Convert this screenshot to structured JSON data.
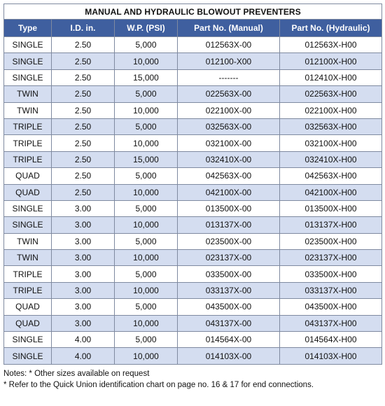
{
  "title": "MANUAL AND HYDRAULIC BLOWOUT PREVENTERS",
  "columns": [
    "Type",
    "I.D. in.",
    "W.P. (PSI)",
    "Part No. (Manual)",
    "Part No. (Hydraulic)"
  ],
  "rows": [
    [
      "SINGLE",
      "2.50",
      "5,000",
      "012563X-00",
      "012563X-H00"
    ],
    [
      "SINGLE",
      "2.50",
      "10,000",
      "012100-X00",
      "012100X-H00"
    ],
    [
      "SINGLE",
      "2.50",
      "15,000",
      "-------",
      "012410X-H00"
    ],
    [
      "TWIN",
      "2.50",
      "5,000",
      "022563X-00",
      "022563X-H00"
    ],
    [
      "TWIN",
      "2.50",
      "10,000",
      "022100X-00",
      "022100X-H00"
    ],
    [
      "TRIPLE",
      "2.50",
      "5,000",
      "032563X-00",
      "032563X-H00"
    ],
    [
      "TRIPLE",
      "2.50",
      "10,000",
      "032100X-00",
      "032100X-H00"
    ],
    [
      "TRIPLE",
      "2.50",
      "15,000",
      "032410X-00",
      "032410X-H00"
    ],
    [
      "QUAD",
      "2.50",
      "5,000",
      "042563X-00",
      "042563X-H00"
    ],
    [
      "QUAD",
      "2.50",
      "10,000",
      "042100X-00",
      "042100X-H00"
    ],
    [
      "SINGLE",
      "3.00",
      "5,000",
      "013500X-00",
      "013500X-H00"
    ],
    [
      "SINGLE",
      "3.00",
      "10,000",
      "013137X-00",
      "013137X-H00"
    ],
    [
      "TWIN",
      "3.00",
      "5,000",
      "023500X-00",
      "023500X-H00"
    ],
    [
      "TWIN",
      "3.00",
      "10,000",
      "023137X-00",
      "023137X-H00"
    ],
    [
      "TRIPLE",
      "3.00",
      "5,000",
      "033500X-00",
      "033500X-H00"
    ],
    [
      "TRIPLE",
      "3.00",
      "10,000",
      "033137X-00",
      "033137X-H00"
    ],
    [
      "QUAD",
      "3.00",
      "5,000",
      "043500X-00",
      "043500X-H00"
    ],
    [
      "QUAD",
      "3.00",
      "10,000",
      "043137X-00",
      "043137X-H00"
    ],
    [
      "SINGLE",
      "4.00",
      "5,000",
      "014564X-00",
      "014564X-H00"
    ],
    [
      "SINGLE",
      "4.00",
      "10,000",
      "014103X-00",
      "014103X-H00"
    ]
  ],
  "notes": [
    "Notes: * Other sizes available on request",
    "* Refer to the Quick Union identification chart on page no. 16 & 17 for end connections."
  ],
  "colors": {
    "header_bg": "#3f5f9f",
    "header_text": "#ffffff",
    "stripe": "#d4ddf0",
    "border": "#7f8aa0"
  }
}
